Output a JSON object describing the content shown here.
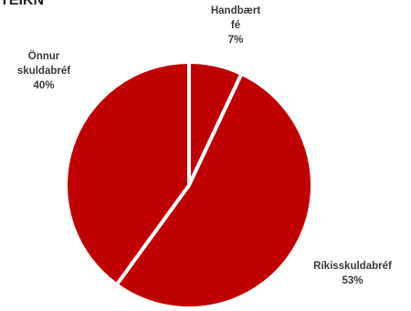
{
  "header": {
    "clipped_text": "TEIKN"
  },
  "chart_data": {
    "type": "pie",
    "categories": [
      "Handbært fé",
      "Ríkisskuldabréf",
      "Önnur skuldabréf"
    ],
    "values": [
      7,
      53,
      40
    ],
    "colors": [
      "#c00000",
      "#c00000",
      "#c00000"
    ],
    "edge_color": "#ffffff",
    "labels": [
      {
        "lines": [
          "Handbært",
          "fé"
        ],
        "pct": "7%"
      },
      {
        "lines": [
          "Ríkisskuldabréf"
        ],
        "pct": "53%"
      },
      {
        "lines": [
          "Önnur",
          "skuldabréf"
        ],
        "pct": "40%"
      }
    ]
  }
}
